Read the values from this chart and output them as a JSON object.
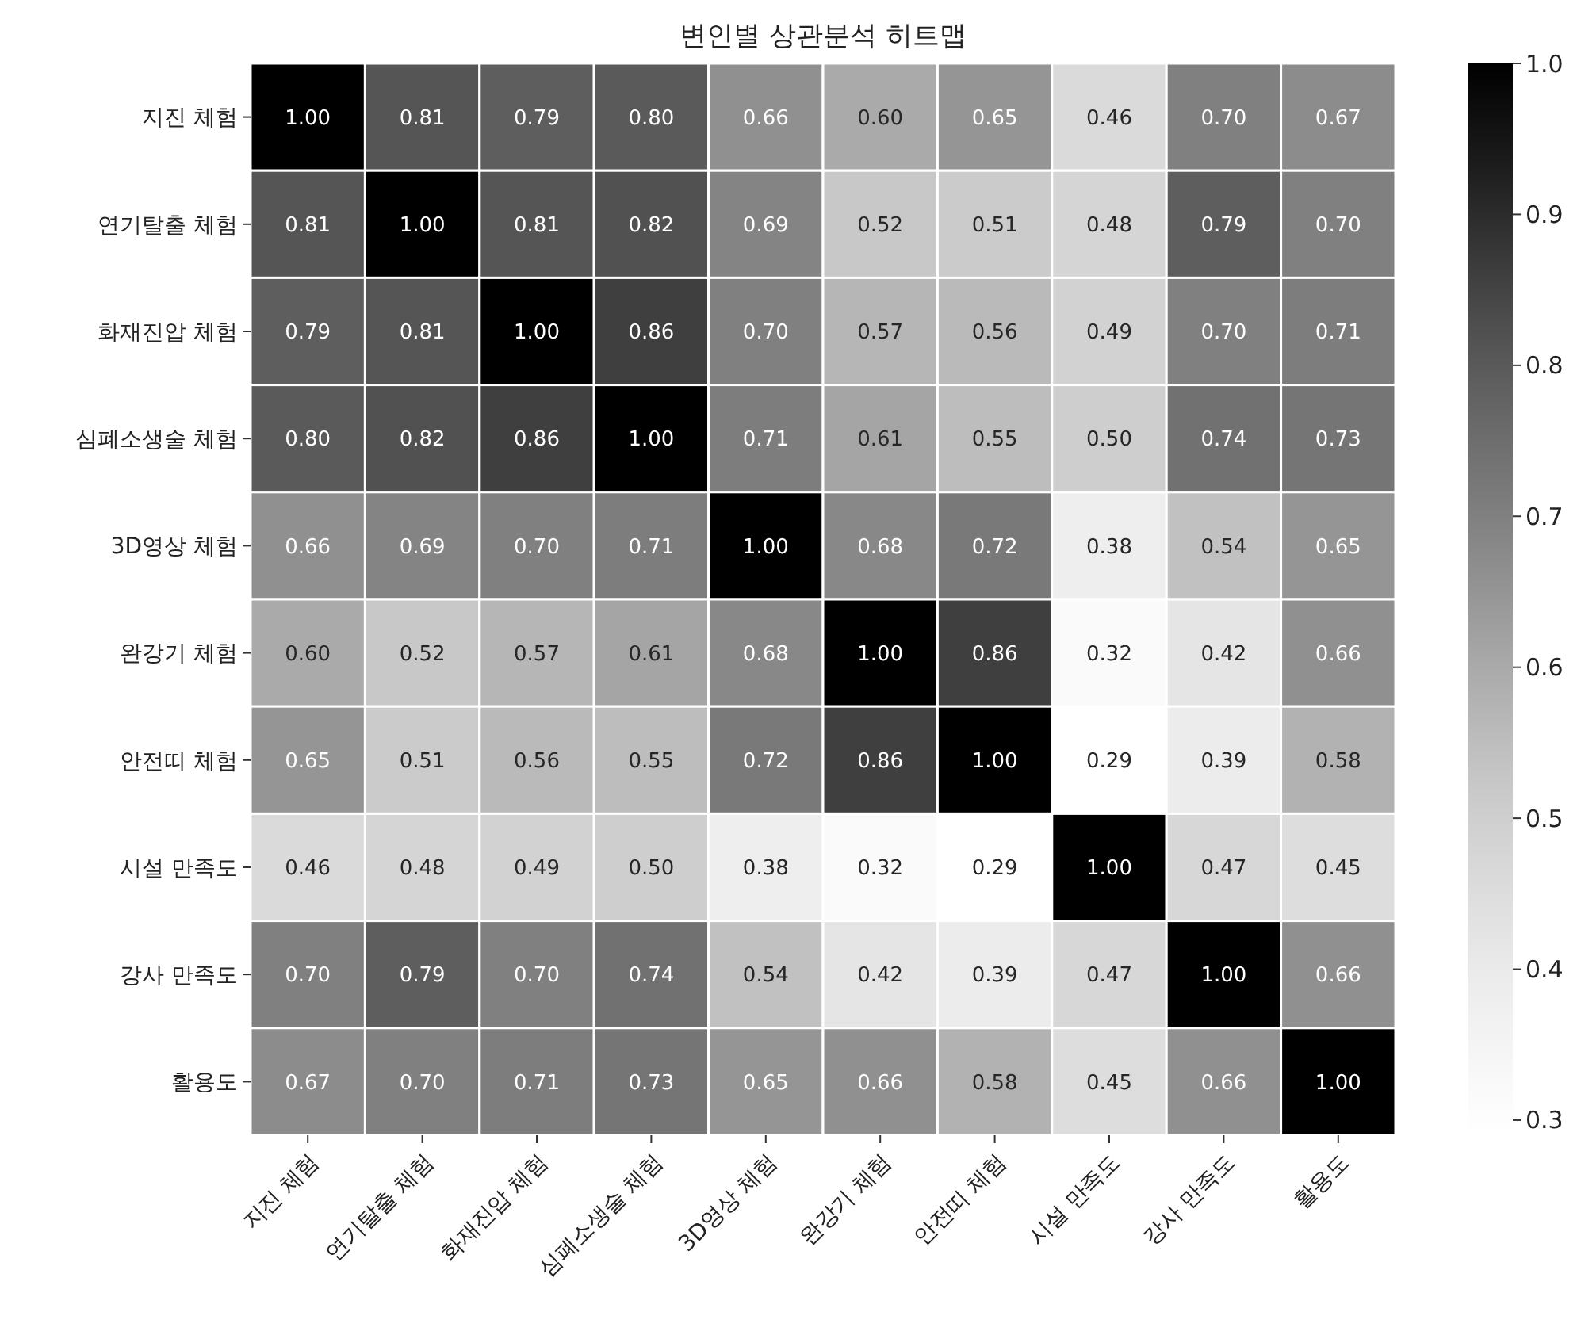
{
  "chart_data": {
    "type": "heatmap",
    "title": "변인별 상관분석 히트맵",
    "categories": [
      "지진 체험",
      "연기탈출 체험",
      "화재진압 체험",
      "심폐소생술 체험",
      "3D영상 체험",
      "완강기 체험",
      "안전띠 체험",
      "시설 만족도",
      "강사 만족도",
      "활용도"
    ],
    "y_categories": [
      "지진 체험",
      "연기탈출 체험",
      "화재진압 체험",
      "심폐소생술 체험",
      "3D영상 체험",
      "완강기 체험",
      "안전띠 체험",
      "시설 만족도",
      "강사 만족도",
      "활용도"
    ],
    "cells": [
      [
        1.0,
        0.81,
        0.79,
        0.8,
        0.66,
        0.6,
        0.65,
        0.46,
        0.7,
        0.67
      ],
      [
        0.81,
        1.0,
        0.81,
        0.82,
        0.69,
        0.52,
        0.51,
        0.48,
        0.79,
        0.7
      ],
      [
        0.79,
        0.81,
        1.0,
        0.86,
        0.7,
        0.57,
        0.56,
        0.49,
        0.7,
        0.71
      ],
      [
        0.8,
        0.82,
        0.86,
        1.0,
        0.71,
        0.61,
        0.55,
        0.5,
        0.74,
        0.73
      ],
      [
        0.66,
        0.69,
        0.7,
        0.71,
        1.0,
        0.68,
        0.72,
        0.38,
        0.54,
        0.65
      ],
      [
        0.6,
        0.52,
        0.57,
        0.61,
        0.68,
        1.0,
        0.86,
        0.32,
        0.42,
        0.66
      ],
      [
        0.65,
        0.51,
        0.56,
        0.55,
        0.72,
        0.86,
        1.0,
        0.29,
        0.39,
        0.58
      ],
      [
        0.46,
        0.48,
        0.49,
        0.5,
        0.38,
        0.32,
        0.29,
        1.0,
        0.47,
        0.45
      ],
      [
        0.7,
        0.79,
        0.7,
        0.74,
        0.54,
        0.42,
        0.39,
        0.47,
        1.0,
        0.66
      ],
      [
        0.67,
        0.7,
        0.71,
        0.73,
        0.65,
        0.66,
        0.58,
        0.45,
        0.66,
        1.0
      ]
    ],
    "cell_labels": [
      [
        "1.00",
        "0.81",
        "0.79",
        "0.80",
        "0.66",
        "0.60",
        "0.65",
        "0.46",
        "0.70",
        "0.67"
      ],
      [
        "0.81",
        "1.00",
        "0.81",
        "0.82",
        "0.69",
        "0.52",
        "0.51",
        "0.48",
        "0.79",
        "0.70"
      ],
      [
        "0.79",
        "0.81",
        "1.00",
        "0.86",
        "0.70",
        "0.57",
        "0.56",
        "0.49",
        "0.70",
        "0.71"
      ],
      [
        "0.80",
        "0.82",
        "0.86",
        "1.00",
        "0.71",
        "0.61",
        "0.55",
        "0.50",
        "0.74",
        "0.73"
      ],
      [
        "0.66",
        "0.69",
        "0.70",
        "0.71",
        "1.00",
        "0.68",
        "0.72",
        "0.38",
        "0.54",
        "0.65"
      ],
      [
        "0.60",
        "0.52",
        "0.57",
        "0.61",
        "0.68",
        "1.00",
        "0.86",
        "0.32",
        "0.42",
        "0.66"
      ],
      [
        "0.65",
        "0.51",
        "0.56",
        "0.55",
        "0.72",
        "0.86",
        "1.00",
        "0.29",
        "0.39",
        "0.58"
      ],
      [
        "0.46",
        "0.48",
        "0.49",
        "0.50",
        "0.38",
        "0.32",
        "0.29",
        "1.00",
        "0.47",
        "0.45"
      ],
      [
        "0.70",
        "0.79",
        "0.70",
        "0.74",
        "0.54",
        "0.42",
        "0.39",
        "0.47",
        "1.00",
        "0.66"
      ],
      [
        "0.67",
        "0.70",
        "0.71",
        "0.73",
        "0.65",
        "0.66",
        "0.58",
        "0.45",
        "0.66",
        "1.00"
      ]
    ],
    "clim": [
      0.29,
      1.0
    ],
    "cticks": [
      {
        "value": 0.3,
        "label": "0.3"
      },
      {
        "value": 0.4,
        "label": "0.4"
      },
      {
        "value": 0.5,
        "label": "0.5"
      },
      {
        "value": 0.6,
        "label": "0.6"
      },
      {
        "value": 0.7,
        "label": "0.7"
      },
      {
        "value": 0.8,
        "label": "0.8"
      },
      {
        "value": 0.9,
        "label": "0.9"
      },
      {
        "value": 1.0,
        "label": "1.0"
      }
    ]
  }
}
